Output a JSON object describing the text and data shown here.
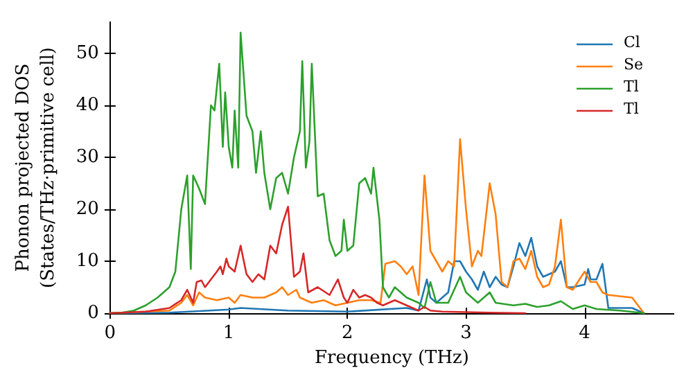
{
  "chart_data": {
    "type": "line",
    "xlabel": "Frequency (THz)",
    "ylabel": "Phonon projected DOS\n(States/THz·primitive cell)",
    "xlim": [
      0,
      4.75
    ],
    "ylim": [
      0,
      56
    ],
    "xticks": [
      0,
      1,
      2,
      3,
      4
    ],
    "yticks": [
      0,
      10,
      20,
      30,
      40,
      50
    ],
    "grid": false,
    "legend": "top right",
    "marker": "none",
    "line_style": "solid",
    "series": [
      {
        "name": "Cl",
        "color": "#1f77b4",
        "x": [
          0,
          0.5,
          1.0,
          1.1,
          1.5,
          2.0,
          2.5,
          2.6,
          2.67,
          2.7,
          2.75,
          2.85,
          2.9,
          2.95,
          3.0,
          3.05,
          3.1,
          3.15,
          3.2,
          3.25,
          3.3,
          3.35,
          3.4,
          3.45,
          3.5,
          3.55,
          3.6,
          3.65,
          3.7,
          3.75,
          3.8,
          3.85,
          3.9,
          4.0,
          4.03,
          4.05,
          4.1,
          4.15,
          4.2,
          4.4,
          4.5
        ],
        "values": [
          0,
          0.1,
          0.7,
          1,
          0.5,
          0.3,
          1,
          0.5,
          6.5,
          3,
          2,
          4,
          10,
          10,
          8,
          6.5,
          4.5,
          8,
          5,
          7,
          5.5,
          5,
          9,
          13.5,
          11,
          14.5,
          9,
          7,
          7.5,
          8,
          10,
          5,
          5,
          5.5,
          8.5,
          6.5,
          6.5,
          9.5,
          1,
          1,
          0
        ]
      },
      {
        "name": "Se",
        "color": "#ff7f0e",
        "x": [
          0,
          0.5,
          0.6,
          0.65,
          0.7,
          0.75,
          0.8,
          0.9,
          1.0,
          1.05,
          1.1,
          1.2,
          1.3,
          1.4,
          1.45,
          1.5,
          1.57,
          1.6,
          1.7,
          1.8,
          1.9,
          2.0,
          2.1,
          2.2,
          2.28,
          2.32,
          2.4,
          2.45,
          2.5,
          2.55,
          2.6,
          2.65,
          2.7,
          2.75,
          2.8,
          2.85,
          2.9,
          2.95,
          3.0,
          3.05,
          3.1,
          3.13,
          3.2,
          3.25,
          3.3,
          3.35,
          3.4,
          3.45,
          3.5,
          3.55,
          3.6,
          3.65,
          3.7,
          3.75,
          3.8,
          3.85,
          3.9,
          4.0,
          4.05,
          4.1,
          4.15,
          4.2,
          4.4,
          4.5
        ],
        "values": [
          0,
          0.5,
          2,
          3.5,
          1.5,
          4,
          3,
          2.5,
          3,
          2,
          3.5,
          3,
          3,
          4,
          5,
          3.5,
          4.5,
          3,
          2,
          2.5,
          1.5,
          2,
          2.5,
          2.5,
          2,
          9.5,
          10,
          9,
          7.5,
          9,
          3.5,
          26.5,
          12,
          10,
          8,
          10,
          9,
          33.5,
          20,
          9,
          12,
          11,
          25,
          19,
          6,
          5,
          10,
          10.5,
          8.5,
          12,
          7,
          5,
          5.5,
          9,
          18,
          5,
          4.5,
          8,
          6,
          6,
          4,
          3.5,
          3,
          0
        ]
      },
      {
        "name": "Tl",
        "color": "#2ca02c",
        "x": [
          0,
          0.1,
          0.2,
          0.3,
          0.4,
          0.5,
          0.55,
          0.6,
          0.65,
          0.68,
          0.7,
          0.75,
          0.8,
          0.85,
          0.88,
          0.92,
          0.95,
          0.97,
          1.0,
          1.03,
          1.05,
          1.08,
          1.1,
          1.15,
          1.2,
          1.23,
          1.27,
          1.3,
          1.35,
          1.4,
          1.45,
          1.5,
          1.55,
          1.6,
          1.62,
          1.65,
          1.68,
          1.7,
          1.75,
          1.8,
          1.85,
          1.9,
          1.95,
          1.97,
          2.0,
          2.05,
          2.1,
          2.15,
          2.2,
          2.22,
          2.27,
          2.3,
          2.35,
          2.4,
          2.5,
          2.6,
          2.65,
          2.7,
          2.75,
          2.85,
          2.95,
          3.0,
          3.1,
          3.2,
          3.25,
          3.4,
          3.5,
          3.6,
          3.7,
          3.8,
          3.9,
          4.0,
          4.1,
          4.3,
          4.5
        ],
        "values": [
          0,
          0.1,
          0.5,
          1.5,
          3,
          5,
          8,
          20,
          26.5,
          8.5,
          26.5,
          24,
          21,
          40,
          39,
          48,
          32,
          42.5,
          32,
          28,
          39,
          28,
          54,
          38,
          35,
          27,
          35,
          27,
          20,
          26,
          27,
          23,
          30,
          35,
          48.5,
          28,
          33,
          48,
          22.5,
          23,
          14,
          11,
          12,
          18,
          12,
          13,
          25,
          26,
          23,
          28,
          18,
          5,
          3,
          5,
          3,
          2,
          1,
          6,
          2,
          2,
          7,
          4,
          2,
          4,
          2,
          1.5,
          1.8,
          1.2,
          1.5,
          2.3,
          0.8,
          1.5,
          0.8,
          0.5,
          0
        ]
      },
      {
        "name": "Tl",
        "color": "#d62728",
        "x": [
          0,
          0.3,
          0.5,
          0.6,
          0.65,
          0.7,
          0.73,
          0.77,
          0.8,
          0.85,
          0.9,
          0.93,
          0.95,
          0.98,
          1.0,
          1.05,
          1.1,
          1.15,
          1.2,
          1.25,
          1.3,
          1.35,
          1.4,
          1.45,
          1.5,
          1.55,
          1.6,
          1.63,
          1.67,
          1.75,
          1.85,
          1.92,
          1.97,
          2.0,
          2.05,
          2.1,
          2.15,
          2.2,
          2.25,
          2.3,
          2.4,
          2.5,
          2.6,
          2.65,
          2.7,
          2.8,
          3.0,
          3.2,
          3.5
        ],
        "values": [
          0,
          0.3,
          1,
          2.5,
          4.5,
          2,
          6,
          6.3,
          5,
          6.5,
          8,
          9,
          7.5,
          10.5,
          9,
          8,
          13,
          7.5,
          6,
          7.5,
          6.5,
          13,
          11.5,
          17,
          20.5,
          7,
          8,
          11.5,
          4,
          5,
          3.5,
          6.5,
          3,
          2,
          4.5,
          3,
          3.5,
          3,
          2,
          1.5,
          2.5,
          1.5,
          0.5,
          1.2,
          0.5,
          0.3,
          0.2,
          0.1,
          0
        ]
      }
    ]
  }
}
